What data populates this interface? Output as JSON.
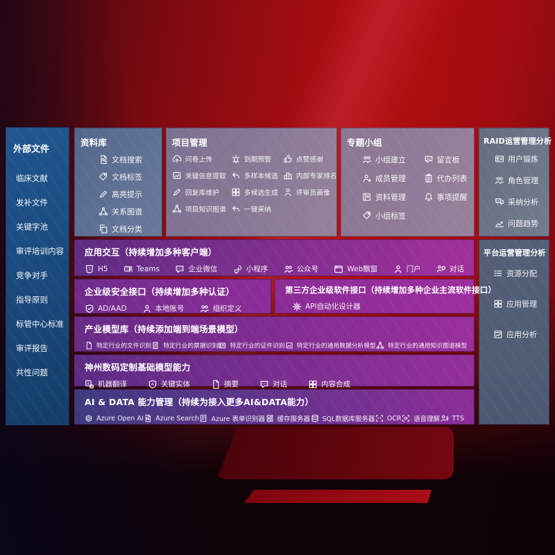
{
  "sidebar": {
    "title": "外部文件",
    "items": [
      "临床文献",
      "发补文件",
      "关键字池",
      "审评培训内容",
      "竞争对手",
      "指导原则",
      "标管中心标准",
      "审评报告",
      "共性问题"
    ]
  },
  "library": {
    "title": "资料库",
    "items": [
      {
        "icon": "doc-search",
        "label": "文档搜索"
      },
      {
        "icon": "tag",
        "label": "文档标签"
      },
      {
        "icon": "pen",
        "label": "高亮提示"
      },
      {
        "icon": "graph",
        "label": "关系图谱"
      },
      {
        "icon": "copy",
        "label": "文档分类"
      }
    ]
  },
  "project": {
    "title": "项目管理",
    "items": [
      {
        "icon": "cloud-upload",
        "label": "问卷上传"
      },
      {
        "icon": "alarm",
        "label": "到期预警"
      },
      {
        "icon": "thumbs-up",
        "label": "点赞感谢"
      },
      {
        "icon": "frame",
        "label": "关键信息提取"
      },
      {
        "icon": "reply",
        "label": "多样本候选"
      },
      {
        "icon": "ranking",
        "label": "内部专家排名"
      },
      {
        "icon": "pen",
        "label": "回复库维护"
      },
      {
        "icon": "grid",
        "label": "多候选生成"
      },
      {
        "icon": "person",
        "label": "评审员画像"
      },
      {
        "icon": "graph",
        "label": "项目知识图谱"
      },
      {
        "icon": "reply",
        "label": "一键采纳"
      }
    ]
  },
  "group": {
    "title": "专题小组",
    "items": [
      {
        "icon": "people",
        "label": "小组建立"
      },
      {
        "icon": "bbs",
        "label": "留言板"
      },
      {
        "icon": "person-add",
        "label": "成员管理"
      },
      {
        "icon": "clipboard",
        "label": "代办列表"
      },
      {
        "icon": "book",
        "label": "资料管理"
      },
      {
        "icon": "bell",
        "label": "事项提醒"
      },
      {
        "icon": "tag",
        "label": "小组标签"
      }
    ]
  },
  "raid": {
    "title": "RAID运营管理分析",
    "items": [
      {
        "icon": "id-card",
        "label": "用户锻炼"
      },
      {
        "icon": "people",
        "label": "角色管理"
      },
      {
        "icon": "qa-chat",
        "label": "采纳分析"
      },
      {
        "icon": "trend",
        "label": "问题趋势"
      }
    ]
  },
  "platform": {
    "title": "平台运营管理分析",
    "items": [
      {
        "icon": "list",
        "label": "资源分配"
      },
      {
        "icon": "grid",
        "label": "应用管理"
      },
      {
        "icon": "report",
        "label": "应用分析"
      }
    ]
  },
  "interaction": {
    "title": "应用交互（持续增加多种客户端）",
    "items": [
      {
        "icon": "html5",
        "label": "H5"
      },
      {
        "icon": "teams",
        "label": "Teams"
      },
      {
        "icon": "chat",
        "label": "企业微信"
      },
      {
        "icon": "mini",
        "label": "小程序"
      },
      {
        "icon": "people",
        "label": "公众号"
      },
      {
        "icon": "browser",
        "label": "Web飘窗"
      },
      {
        "icon": "person",
        "label": "门户"
      },
      {
        "icon": "dialog",
        "label": "对话"
      }
    ]
  },
  "security": {
    "title": "企业级安全接口（持续增加多种认证）",
    "items": [
      {
        "icon": "shield",
        "label": "AD/AAD"
      },
      {
        "icon": "person",
        "label": "本地账号"
      },
      {
        "icon": "people",
        "label": "组织定义"
      }
    ]
  },
  "thirdparty": {
    "title": "第三方企业级软件接口（持续增加多种企业主流软件接口）",
    "items": [
      {
        "icon": "gear",
        "label": "API自动化设计器"
      }
    ]
  },
  "industry": {
    "title": "产业模型库（持续添加端到端场景模型）",
    "items": [
      {
        "icon": "doc",
        "label": "特定行业的文件识别"
      },
      {
        "icon": "receipt",
        "label": "特定行业的票据识别"
      },
      {
        "icon": "id-card",
        "label": "特定行业的证件识别"
      },
      {
        "icon": "frame",
        "label": "特定行业的通用数据分析模型"
      },
      {
        "icon": "graph",
        "label": "特定行业的通用知识图谱模型"
      }
    ]
  },
  "basemodel": {
    "title": "神州数码定制基础模型能力",
    "items": [
      {
        "icon": "translate",
        "label": "机器翻译"
      },
      {
        "icon": "entity",
        "label": "关键实体"
      },
      {
        "icon": "doc",
        "label": "摘要"
      },
      {
        "icon": "chat",
        "label": "对话"
      },
      {
        "icon": "grid",
        "label": "内容合成"
      }
    ]
  },
  "aidata": {
    "title": "AI & DATA 能力管理（持续为接入更多AI&DATA能力）",
    "items": [
      {
        "icon": "openai",
        "label": "Azure Open AI"
      },
      {
        "icon": "doc-search",
        "label": "Azure Search"
      },
      {
        "icon": "form",
        "label": "Azure 表单识别器"
      },
      {
        "icon": "server",
        "label": "缓存服务器"
      },
      {
        "icon": "database",
        "label": "SQL数据库服务器"
      },
      {
        "icon": "ocr",
        "label": "OCR"
      },
      {
        "icon": "voice",
        "label": "语音理解"
      },
      {
        "icon": "tts",
        "label": "TTS"
      }
    ]
  },
  "colors": {
    "background_red": "#b20e10",
    "sidebar_blue": "#1d4b7e",
    "panel_gray_blue": "#5c6b84",
    "panel_purple": "#7a2d92",
    "panel_indigo": "#3d3a80"
  }
}
